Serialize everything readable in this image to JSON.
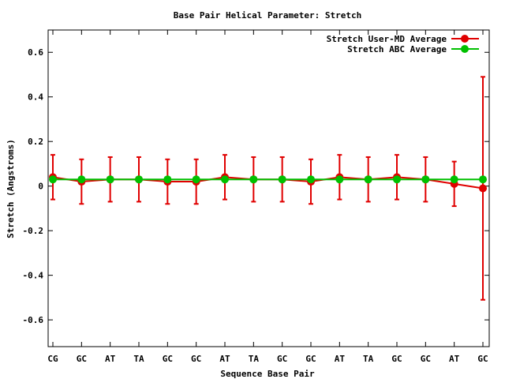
{
  "chart_data": {
    "type": "line",
    "title": "Base Pair Helical Parameter: Stretch",
    "xlabel": "Sequence Base Pair",
    "ylabel": "Stretch (Angstroms)",
    "ylim": [
      -0.72,
      0.7
    ],
    "yticks": [
      -0.6,
      -0.4,
      -0.2,
      0,
      0.2,
      0.4,
      0.6
    ],
    "ytick_labels": [
      "-0.6",
      "-0.4",
      "-0.2",
      "0",
      "0.2",
      "0.4",
      "0.6"
    ],
    "categories": [
      "CG",
      "GC",
      "AT",
      "TA",
      "GC",
      "GC",
      "AT",
      "TA",
      "GC",
      "GC",
      "AT",
      "TA",
      "GC",
      "GC",
      "AT",
      "GC"
    ],
    "legend_position": "top-right",
    "grid": false,
    "series": [
      {
        "name": "Stretch User-MD Average",
        "color": "#e00000",
        "values": [
          0.04,
          0.02,
          0.03,
          0.03,
          0.02,
          0.02,
          0.04,
          0.03,
          0.03,
          0.02,
          0.04,
          0.03,
          0.04,
          0.03,
          0.01,
          -0.01
        ],
        "error": [
          0.1,
          0.1,
          0.1,
          0.1,
          0.1,
          0.1,
          0.1,
          0.1,
          0.1,
          0.1,
          0.1,
          0.1,
          0.1,
          0.1,
          0.1,
          0.5
        ]
      },
      {
        "name": "Stretch ABC Average",
        "color": "#00c000",
        "values": [
          0.03,
          0.03,
          0.03,
          0.03,
          0.03,
          0.03,
          0.03,
          0.03,
          0.03,
          0.03,
          0.03,
          0.03,
          0.03,
          0.03,
          0.03,
          0.03
        ]
      }
    ]
  }
}
